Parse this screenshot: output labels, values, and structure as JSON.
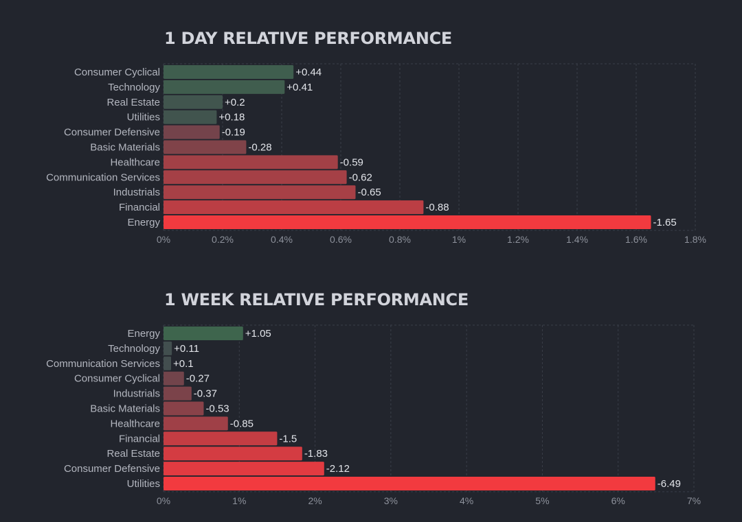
{
  "colors": {
    "background": "#22252d",
    "positive_strong": "#3a7a4c",
    "neutral": "#44474f",
    "negative_strong": "#f23a3f",
    "grid": "#3a3e49"
  },
  "chart_data": [
    {
      "type": "bar",
      "orientation": "horizontal",
      "title": "1 DAY RELATIVE PERFORMANCE",
      "categories": [
        "Consumer Cyclical",
        "Technology",
        "Real Estate",
        "Utilities",
        "Consumer Defensive",
        "Basic Materials",
        "Healthcare",
        "Communication Services",
        "Industrials",
        "Financial",
        "Energy"
      ],
      "values": [
        0.44,
        0.41,
        0.2,
        0.18,
        -0.19,
        -0.28,
        -0.59,
        -0.62,
        -0.65,
        -0.88,
        -1.65
      ],
      "value_labels": [
        "+0.44",
        "+0.41",
        "+0.2",
        "+0.18",
        "-0.19",
        "-0.28",
        "-0.59",
        "-0.62",
        "-0.65",
        "-0.88",
        "-1.65"
      ],
      "xticks": [
        "0%",
        "0.2%",
        "0.4%",
        "0.6%",
        "0.8%",
        "1%",
        "1.2%",
        "1.4%",
        "1.6%",
        "1.8%"
      ],
      "xlim": [
        0,
        1.8
      ],
      "bar_length": "absolute value",
      "color_scale_max": 1.65,
      "grid": true,
      "legend": "none"
    },
    {
      "type": "bar",
      "orientation": "horizontal",
      "title": "1 WEEK RELATIVE PERFORMANCE",
      "categories": [
        "Energy",
        "Technology",
        "Communication Services",
        "Consumer Cyclical",
        "Industrials",
        "Basic Materials",
        "Healthcare",
        "Financial",
        "Real Estate",
        "Consumer Defensive",
        "Utilities"
      ],
      "values": [
        1.05,
        0.11,
        0.1,
        -0.27,
        -0.37,
        -0.53,
        -0.85,
        -1.5,
        -1.83,
        -2.12,
        -6.49
      ],
      "value_labels": [
        "+1.05",
        "+0.11",
        "+0.1",
        "-0.27",
        "-0.37",
        "-0.53",
        "-0.85",
        "-1.5",
        "-1.83",
        "-2.12",
        "-6.49"
      ],
      "xticks": [
        "0%",
        "1%",
        "2%",
        "3%",
        "4%",
        "5%",
        "6%",
        "7%"
      ],
      "xlim": [
        0,
        7
      ],
      "bar_length": "absolute value",
      "color_scale_max": 2.5,
      "grid": true,
      "legend": "none"
    }
  ]
}
